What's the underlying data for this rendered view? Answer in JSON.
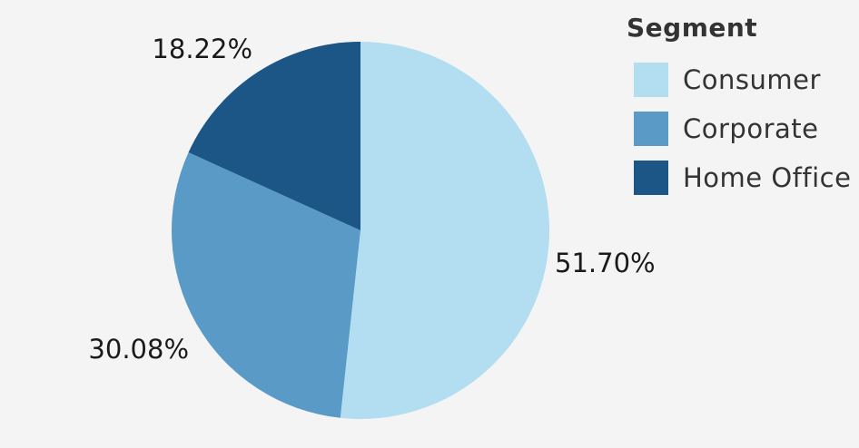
{
  "chart_data": {
    "type": "pie",
    "legend_title": "Segment",
    "legend_position": "top-right",
    "slices": [
      {
        "name": "Consumer",
        "value": 51.7,
        "label": "51.70%",
        "color": "#b3def2"
      },
      {
        "name": "Corporate",
        "value": 30.08,
        "label": "30.08%",
        "color": "#5a9ac6"
      },
      {
        "name": "Home Office",
        "value": 18.22,
        "label": "18.22%",
        "color": "#1b5686"
      }
    ]
  }
}
